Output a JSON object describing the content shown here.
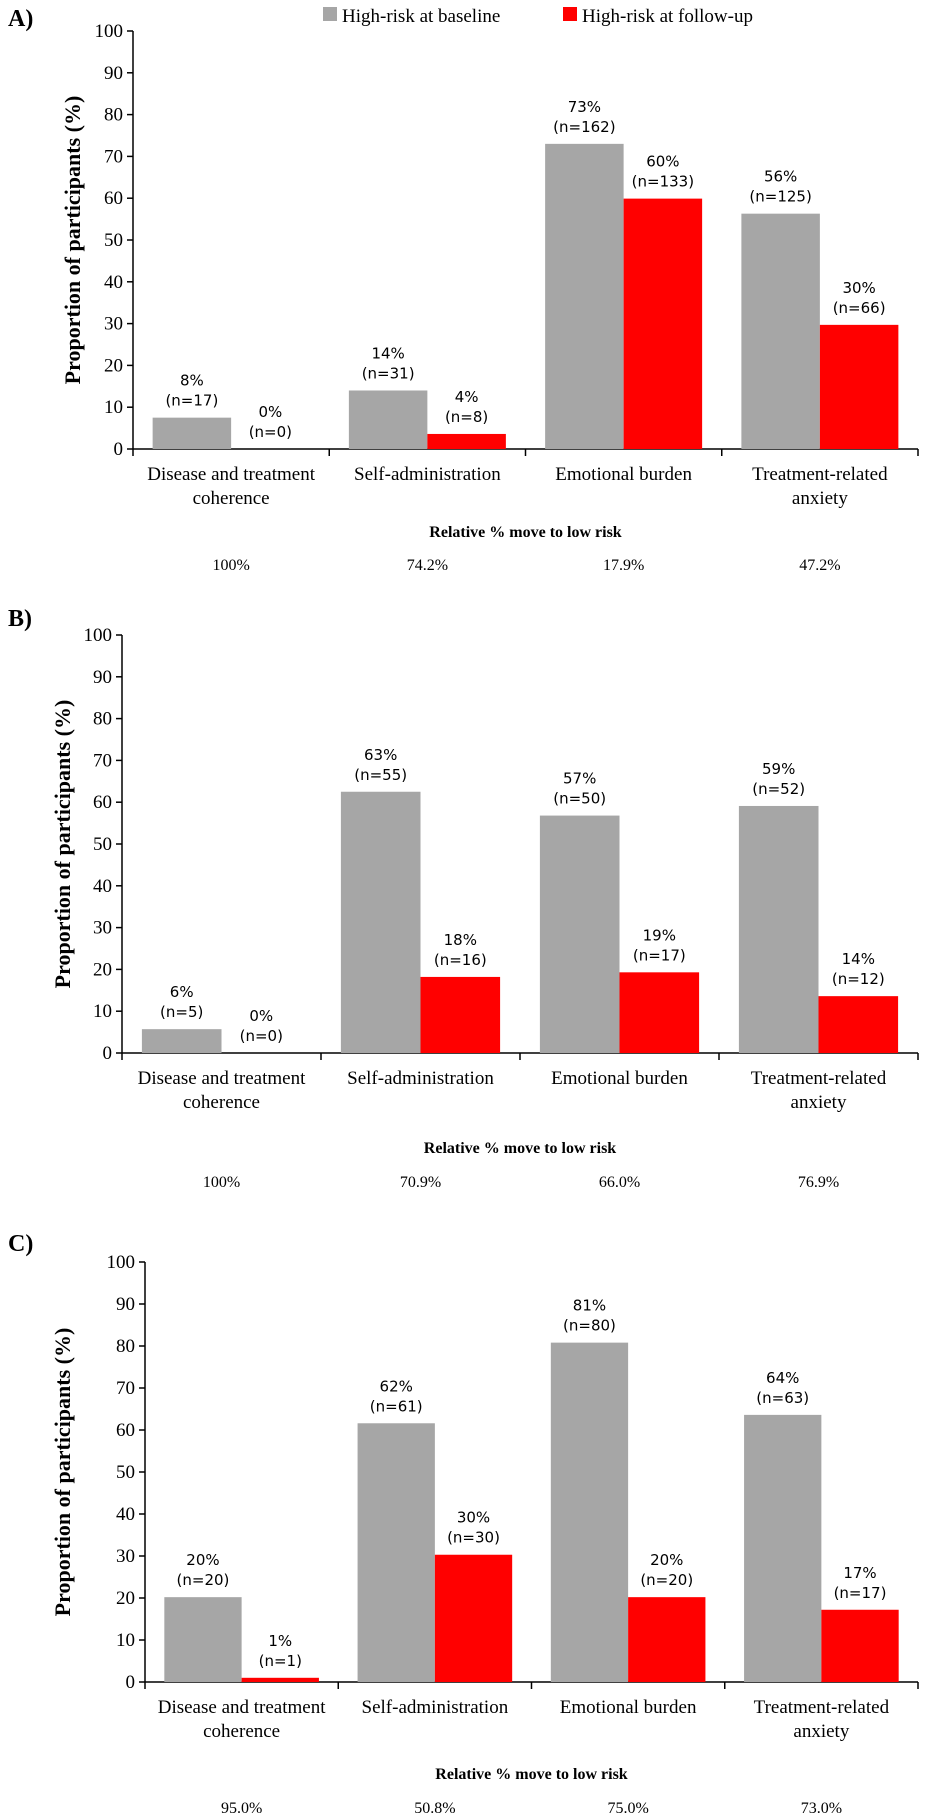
{
  "legend": {
    "items": [
      {
        "label": "High-risk at baseline",
        "color": "#a6a6a6"
      },
      {
        "label": "High-risk at follow-up",
        "color": "#ff0000"
      }
    ]
  },
  "chart_data": [
    {
      "type": "bar",
      "panel_label": "A)",
      "ylabel": "Proportion of participants (%)",
      "ylim": [
        0,
        100
      ],
      "yticks": [
        0,
        10,
        20,
        30,
        40,
        50,
        60,
        70,
        80,
        90,
        100
      ],
      "categories": [
        [
          "Disease and treatment",
          "coherence"
        ],
        [
          "Self-administration"
        ],
        [
          "Emotional burden"
        ],
        [
          "Treatment-related",
          "anxiety"
        ]
      ],
      "series": [
        {
          "name": "High-risk at baseline",
          "values": [
            7.5,
            14,
            73,
            56.3
          ],
          "labels": [
            [
              "8%",
              "(n=17)"
            ],
            [
              "14%",
              "(n=31)"
            ],
            [
              "73%",
              "(n=162)"
            ],
            [
              "56%",
              "(n=125)"
            ]
          ]
        },
        {
          "name": "High-risk at follow-up",
          "values": [
            0,
            3.6,
            59.9,
            29.7
          ],
          "labels": [
            [
              "0%",
              "(n=0)"
            ],
            [
              "4%",
              "(n=8)"
            ],
            [
              "60%",
              "(n=133)"
            ],
            [
              "30%",
              "(n=66)"
            ]
          ]
        }
      ],
      "relative_title": "Relative % move to low risk",
      "relative_values": [
        "100%",
        "74.2%",
        "17.9%",
        "47.2%"
      ]
    },
    {
      "type": "bar",
      "panel_label": "B)",
      "ylabel": "Proportion of participants (%)",
      "ylim": [
        0,
        100
      ],
      "yticks": [
        0,
        10,
        20,
        30,
        40,
        50,
        60,
        70,
        80,
        90,
        100
      ],
      "categories": [
        [
          "Disease and treatment",
          "coherence"
        ],
        [
          "Self-administration"
        ],
        [
          "Emotional burden"
        ],
        [
          "Treatment-related",
          "anxiety"
        ]
      ],
      "series": [
        {
          "name": "High-risk at baseline",
          "values": [
            5.7,
            62.5,
            56.8,
            59.1
          ],
          "labels": [
            [
              "6%",
              "(n=5)"
            ],
            [
              "63%",
              "(n=55)"
            ],
            [
              "57%",
              "(n=50)"
            ],
            [
              "59%",
              "(n=52)"
            ]
          ]
        },
        {
          "name": "High-risk at follow-up",
          "values": [
            0,
            18.2,
            19.3,
            13.6
          ],
          "labels": [
            [
              "0%",
              "(n=0)"
            ],
            [
              "18%",
              "(n=16)"
            ],
            [
              "19%",
              "(n=17)"
            ],
            [
              "14%",
              "(n=12)"
            ]
          ]
        }
      ],
      "relative_title": "Relative % move to low risk",
      "relative_values": [
        "100%",
        "70.9%",
        "66.0%",
        "76.9%"
      ]
    },
    {
      "type": "bar",
      "panel_label": "C)",
      "ylabel": "Proportion of participants (%)",
      "ylim": [
        0,
        100
      ],
      "yticks": [
        0,
        10,
        20,
        30,
        40,
        50,
        60,
        70,
        80,
        90,
        100
      ],
      "categories": [
        [
          "Disease and treatment",
          "coherence"
        ],
        [
          "Self-administration"
        ],
        [
          "Emotional burden"
        ],
        [
          "Treatment-related",
          "anxiety"
        ]
      ],
      "series": [
        {
          "name": "High-risk at baseline",
          "values": [
            20.2,
            61.6,
            80.8,
            63.6
          ],
          "labels": [
            [
              "20%",
              "(n=20)"
            ],
            [
              "62%",
              "(n=61)"
            ],
            [
              "81%",
              "(n=80)"
            ],
            [
              "64%",
              "(n=63)"
            ]
          ]
        },
        {
          "name": "High-risk at follow-up",
          "values": [
            1.0,
            30.3,
            20.2,
            17.2
          ],
          "labels": [
            [
              "1%",
              "(n=1)"
            ],
            [
              "30%",
              "(n=30)"
            ],
            [
              "20%",
              "(n=20)"
            ],
            [
              "17%",
              "(n=17)"
            ]
          ]
        }
      ],
      "relative_title": "Relative % move to low risk",
      "relative_values": [
        "95.0%",
        "50.8%",
        "75.0%",
        "73.0%"
      ]
    }
  ]
}
